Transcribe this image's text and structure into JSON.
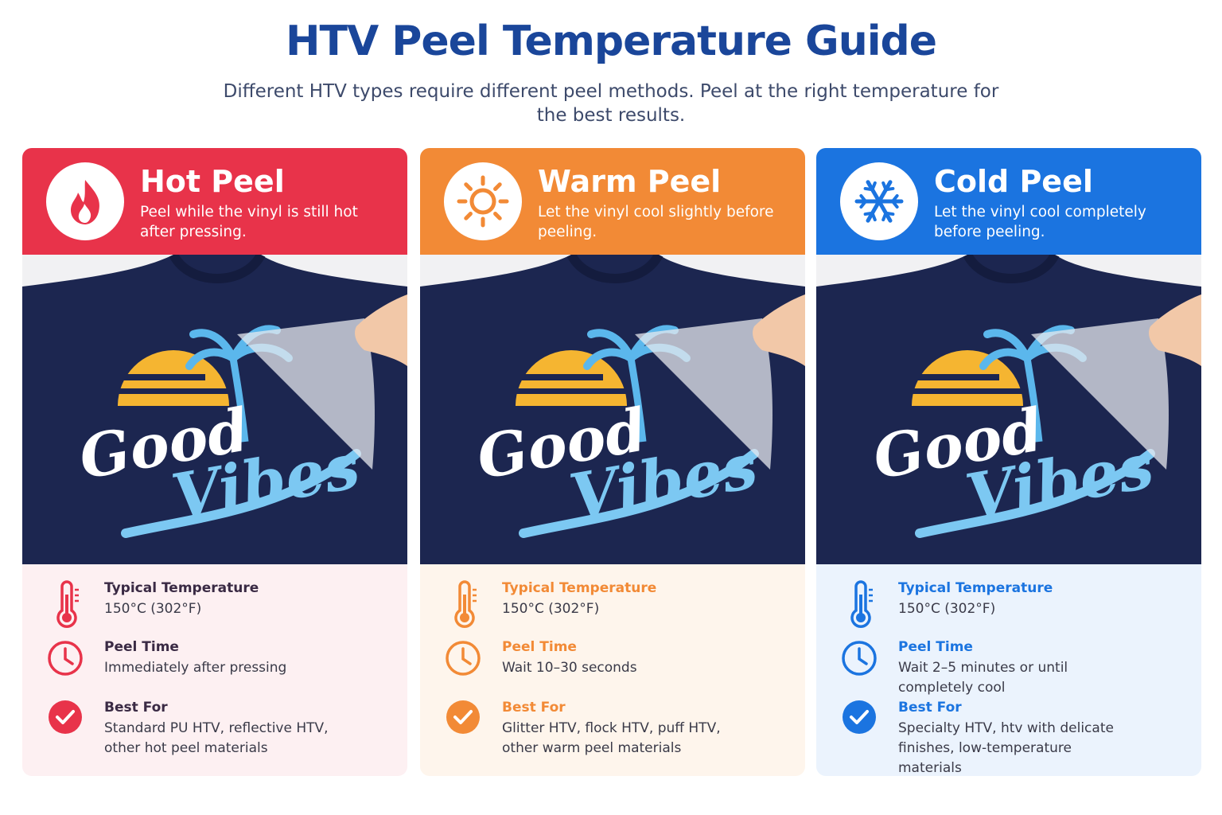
{
  "header": {
    "title": "HTV Peel Temperature Guide",
    "subtitle": "Different HTV types require different peel methods. Peel at the right temperature for the best results."
  },
  "cards": [
    {
      "title": "Hot Peel",
      "description": "Peel while the vinyl is still hot after pressing.",
      "color": "#e8334a",
      "tint": "#fdf0f2",
      "graphic_text": [
        "Good",
        "Vibes"
      ],
      "rows": [
        {
          "label": "Typical Temperature",
          "value": "150°C (302°F)"
        },
        {
          "label": "Peel Time",
          "value": "Immediately after pressing"
        },
        {
          "label": "Best For",
          "value": "Standard PU HTV, reflective HTV, other hot peel materials"
        }
      ]
    },
    {
      "title": "Warm Peel",
      "description": "Let the vinyl cool slightly before peeling.",
      "color": "#f28a36",
      "tint": "#fef5ec",
      "graphic_text": [
        "Good",
        "Vibes"
      ],
      "rows": [
        {
          "label": "Typical Temperature",
          "value": "150°C (302°F)"
        },
        {
          "label": "Peel Time",
          "value": "Wait 10–30 seconds"
        },
        {
          "label": "Best For",
          "value": "Glitter HTV, flock HTV, puff HTV, other warm peel materials"
        }
      ]
    },
    {
      "title": "Cold Peel",
      "description": "Let the vinyl cool completely before peeling.",
      "color": "#1b74e0",
      "tint": "#ebf3fd",
      "graphic_text": [
        "Good",
        "Vibes"
      ],
      "rows": [
        {
          "label": "Typical Temperature",
          "value": "150°C (302°F)"
        },
        {
          "label": "Peel Time",
          "value": "Wait 2–5 minutes or until completely cool"
        },
        {
          "label": "Best For",
          "value": "Specialty HTV, htv with delicate finishes, low-temperature materials"
        }
      ]
    }
  ]
}
